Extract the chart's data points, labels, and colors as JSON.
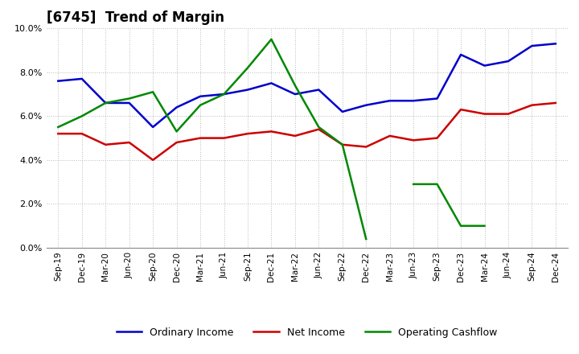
{
  "title": "[6745]  Trend of Margin",
  "x_labels": [
    "Sep-19",
    "Dec-19",
    "Mar-20",
    "Jun-20",
    "Sep-20",
    "Dec-20",
    "Mar-21",
    "Jun-21",
    "Sep-21",
    "Dec-21",
    "Mar-22",
    "Jun-22",
    "Sep-22",
    "Dec-22",
    "Mar-23",
    "Jun-23",
    "Sep-23",
    "Dec-23",
    "Mar-24",
    "Jun-24",
    "Sep-24",
    "Dec-24"
  ],
  "ordinary_income": [
    7.6,
    7.7,
    6.6,
    6.6,
    5.5,
    6.4,
    6.9,
    7.0,
    7.2,
    7.5,
    7.0,
    7.2,
    6.2,
    6.5,
    6.7,
    6.7,
    6.8,
    8.8,
    8.3,
    8.5,
    9.2,
    9.3
  ],
  "net_income": [
    5.2,
    5.2,
    4.7,
    4.8,
    4.0,
    4.8,
    5.0,
    5.0,
    5.2,
    5.3,
    5.1,
    5.4,
    4.7,
    4.6,
    5.1,
    4.9,
    5.0,
    6.3,
    6.1,
    6.1,
    6.5,
    6.6
  ],
  "operating_cashflow": [
    5.5,
    6.0,
    6.6,
    6.8,
    7.1,
    5.3,
    6.5,
    7.0,
    8.2,
    9.5,
    7.4,
    5.5,
    4.7,
    0.4,
    null,
    2.9,
    2.9,
    1.0,
    1.0,
    null,
    null,
    null
  ],
  "ordinary_income_color": "#0000cc",
  "net_income_color": "#cc0000",
  "operating_cashflow_color": "#008800",
  "ylim": [
    0.0,
    10.0
  ],
  "yticks": [
    0.0,
    2.0,
    4.0,
    6.0,
    8.0,
    10.0
  ],
  "background_color": "#ffffff",
  "grid_color": "#bbbbbb",
  "title_fontsize": 12,
  "legend_labels": [
    "Ordinary Income",
    "Net Income",
    "Operating Cashflow"
  ]
}
